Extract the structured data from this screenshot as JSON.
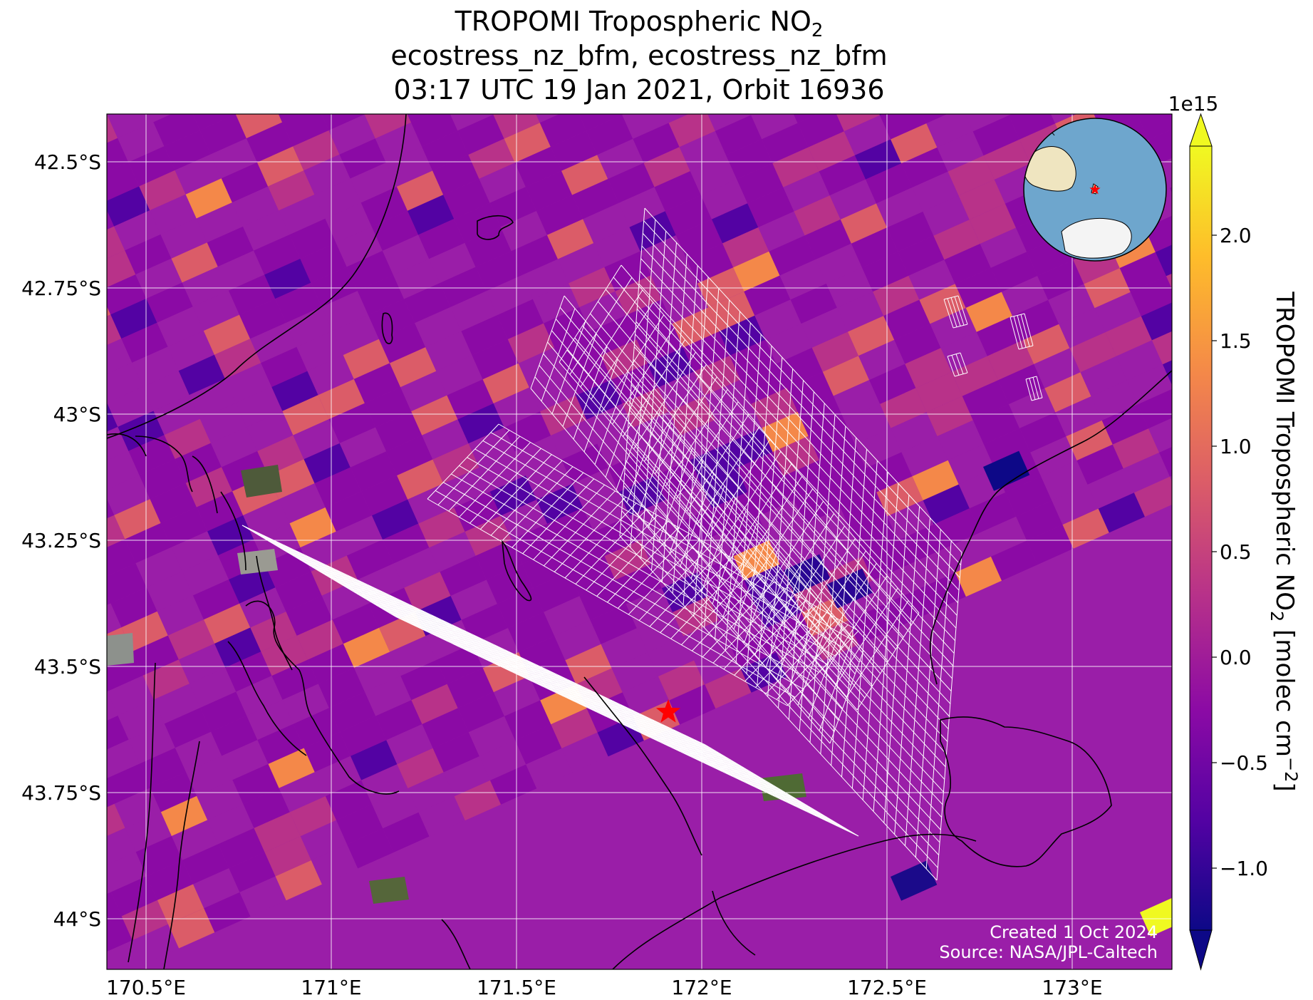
{
  "title": {
    "line1_main": "TROPOMI Tropospheric NO",
    "line1_sub": "2",
    "line2": "ecostress_nz_bfm, ecostress_nz_bfm",
    "line3": "03:17 UTC 19 Jan 2021, Orbit 16936"
  },
  "axes": {
    "lon_ticks": [
      "170.5°E",
      "171°E",
      "171.5°E",
      "172°E",
      "172.5°E",
      "173°E"
    ],
    "lat_ticks": [
      "42.5°S",
      "42.75°S",
      "43°S",
      "43.25°S",
      "43.5°S",
      "43.75°S",
      "44°S"
    ]
  },
  "colorbar": {
    "exponent": "1e15",
    "ticks": [
      "2.0",
      "1.5",
      "1.0",
      "0.5",
      "0.0",
      "−0.5",
      "−1.0"
    ],
    "label_main": "TROPOMI Tropospheric NO",
    "label_sub": "2",
    "label_units": " [molec cm",
    "label_sup": "−2",
    "label_close": "]",
    "colors": [
      "#0d0887",
      "#5302a3",
      "#8b0aa5",
      "#b83289",
      "#db5c68",
      "#f48849",
      "#febd2a",
      "#f0f921"
    ]
  },
  "map": {
    "target": "red-star",
    "star_color": "#ff0000",
    "grid_color": "#ffffff",
    "coast_color": "#000000",
    "ocean_color": "#6ea6cd",
    "land_color": "#efe5c0"
  },
  "credits": {
    "created": "Created 1 Oct 2024",
    "source": "Source: NASA/JPL-Caltech"
  }
}
